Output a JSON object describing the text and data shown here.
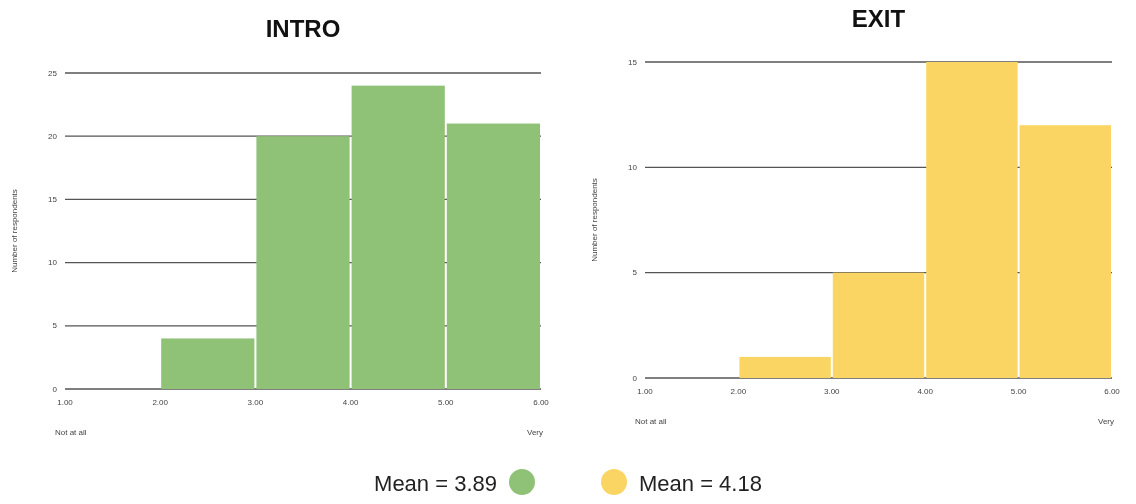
{
  "chart_data": [
    {
      "type": "histogram",
      "title": "INTRO",
      "ylabel": "Number of respondents",
      "bins": [
        1,
        2,
        3,
        4,
        5,
        6
      ],
      "values": [
        0,
        4,
        20,
        24,
        21
      ],
      "color": "#8fc176",
      "xlim": [
        1,
        6
      ],
      "xticks": [
        {
          "value": 1,
          "label": "1.00"
        },
        {
          "value": 2,
          "label": "2.00"
        },
        {
          "value": 3,
          "label": "3.00"
        },
        {
          "value": 4,
          "label": "4.00"
        },
        {
          "value": 5,
          "label": "5.00"
        },
        {
          "value": 6,
          "label": "6.00"
        }
      ],
      "ylim": [
        0,
        25
      ],
      "yticks": [
        0,
        5,
        10,
        15,
        20,
        25
      ],
      "grid": "y",
      "annotations": [
        "Not at all",
        "Very",
        "Mean = 3.89"
      ]
    },
    {
      "type": "histogram",
      "title": "EXIT",
      "ylabel": "Number of respondents",
      "bins": [
        1,
        2,
        3,
        4,
        5,
        6
      ],
      "values": [
        0,
        1,
        5,
        15,
        12
      ],
      "color": "#fbd564",
      "xlim": [
        1,
        6
      ],
      "xticks": [
        {
          "value": 1,
          "label": "1.00"
        },
        {
          "value": 2,
          "label": "2.00"
        },
        {
          "value": 3,
          "label": "3.00"
        },
        {
          "value": 4,
          "label": "4.00"
        },
        {
          "value": 5,
          "label": "5.00"
        },
        {
          "value": 6,
          "label": "6.00"
        }
      ],
      "ylim": [
        0,
        15
      ],
      "yticks": [
        0,
        5,
        10,
        15
      ],
      "grid": "y",
      "annotations": [
        "Not at all",
        "Very",
        "Mean = 4.18"
      ]
    }
  ]
}
